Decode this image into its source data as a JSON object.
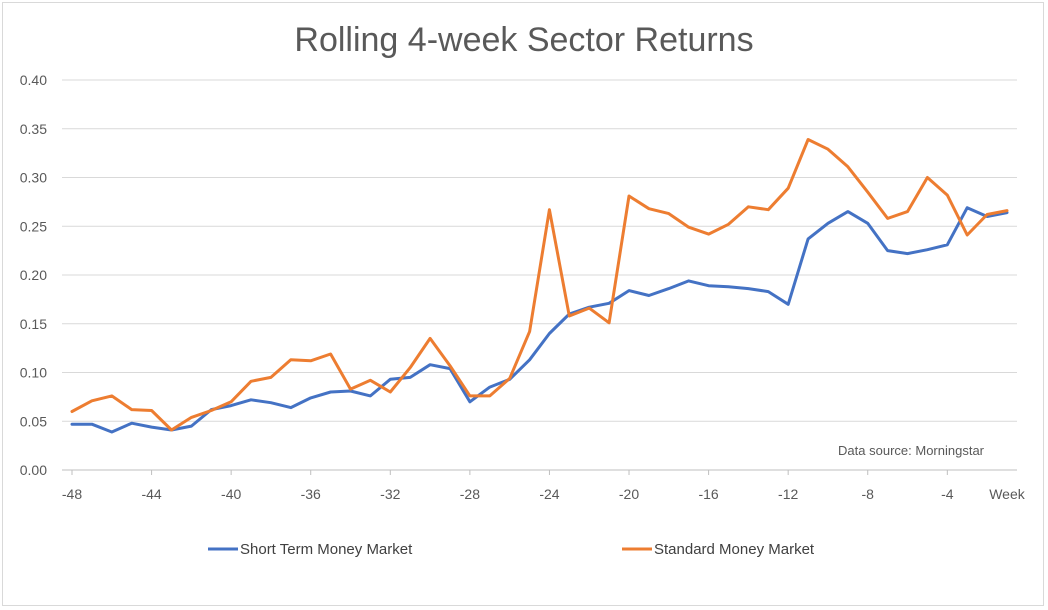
{
  "chart_data": {
    "type": "line",
    "title": "Rolling 4-week Sector Returns",
    "xlabel": "Week",
    "ylabel": "",
    "ylim": [
      0,
      0.4
    ],
    "y_ticks": [
      "0.00",
      "0.05",
      "0.10",
      "0.15",
      "0.20",
      "0.25",
      "0.30",
      "0.35",
      "0.40"
    ],
    "x_ticks": [
      "-48",
      "-44",
      "-40",
      "-36",
      "-32",
      "-28",
      "-24",
      "-20",
      "-16",
      "-12",
      "-8",
      "-4",
      "Week"
    ],
    "grid": true,
    "legend_position": "bottom",
    "annotation": "Data source: Morningstar",
    "x": [
      -48,
      -47,
      -46,
      -45,
      -44,
      -43,
      -42,
      -41,
      -40,
      -39,
      -38,
      -37,
      -36,
      -35,
      -34,
      -33,
      -32,
      -31,
      -30,
      -29,
      -28,
      -27,
      -26,
      -25,
      -24,
      -23,
      -22,
      -21,
      -20,
      -19,
      -18,
      -17,
      -16,
      -15,
      -14,
      -13,
      -12,
      -11,
      -10,
      -9,
      -8,
      -7,
      -6,
      -5,
      -4,
      -3,
      -2,
      -1
    ],
    "series": [
      {
        "name": "Short Term Money Market",
        "color": "#4472c4",
        "values": [
          0.047,
          0.047,
          0.039,
          0.048,
          0.044,
          0.041,
          0.045,
          0.062,
          0.066,
          0.072,
          0.069,
          0.064,
          0.074,
          0.08,
          0.081,
          0.076,
          0.093,
          0.095,
          0.108,
          0.104,
          0.07,
          0.085,
          0.093,
          0.113,
          0.14,
          0.16,
          0.167,
          0.171,
          0.184,
          0.179,
          0.186,
          0.194,
          0.189,
          0.188,
          0.186,
          0.183,
          0.17,
          0.237,
          0.253,
          0.265,
          0.253,
          0.225,
          0.222,
          0.226,
          0.231,
          0.269,
          0.26,
          0.264
        ]
      },
      {
        "name": "Standard Money Market",
        "color": "#ed7d31",
        "values": [
          0.06,
          0.071,
          0.076,
          0.062,
          0.061,
          0.041,
          0.054,
          0.061,
          0.07,
          0.091,
          0.095,
          0.113,
          0.112,
          0.119,
          0.083,
          0.092,
          0.08,
          0.105,
          0.135,
          0.107,
          0.076,
          0.076,
          0.094,
          0.142,
          0.267,
          0.158,
          0.166,
          0.151,
          0.281,
          0.268,
          0.263,
          0.249,
          0.242,
          0.252,
          0.27,
          0.267,
          0.289,
          0.339,
          0.329,
          0.311,
          0.285,
          0.258,
          0.265,
          0.3,
          0.282,
          0.241,
          0.262,
          0.266
        ]
      }
    ]
  }
}
